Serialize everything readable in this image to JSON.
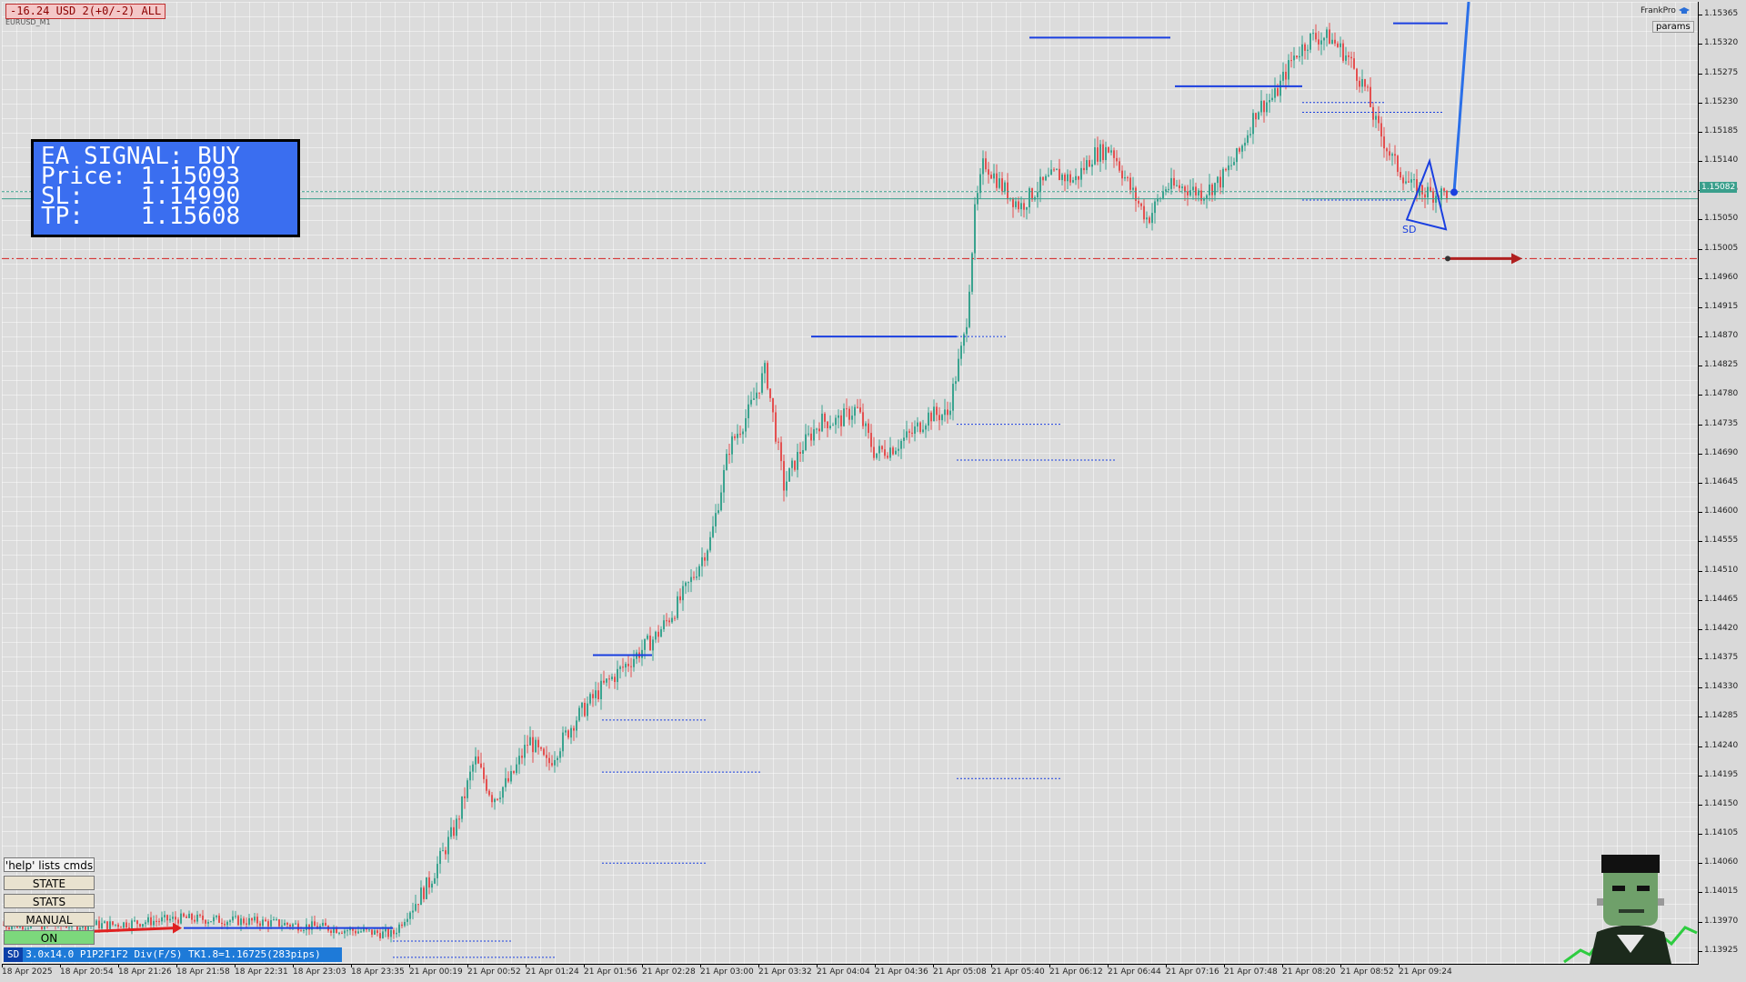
{
  "account": {
    "pnl_badge": "-16.24 USD 2(+0/-2) ALL",
    "symbol": "EURUSD_M1"
  },
  "signal_panel": {
    "title": "EA SIGNAL: BUY",
    "price_line": "Price: 1.15093",
    "sl_line": "SL:    1.14990",
    "tp_line": "TP:    1.15608"
  },
  "branding": {
    "name": "FrankPro",
    "params_label": "params"
  },
  "current_price_label": "1.15082",
  "controls": {
    "help": "'help' lists cmds",
    "state": "STATE",
    "stats": "STATS",
    "manual": "MANUAL",
    "on": "ON"
  },
  "status_bar": {
    "tag": "SD",
    "text": "3.0x14.0 P1P2F1F2 Div(F/S) TK1.8=1.16725(283pips)"
  },
  "pattern_label": "SD",
  "price_axis": [
    "1.15365",
    "1.15320",
    "1.15275",
    "1.15230",
    "1.15185",
    "1.15140",
    "1.15095",
    "1.15050",
    "1.15005",
    "1.14960",
    "1.14915",
    "1.14870",
    "1.14825",
    "1.14780",
    "1.14735",
    "1.14690",
    "1.14645",
    "1.14600",
    "1.14555",
    "1.14510",
    "1.14465",
    "1.14420",
    "1.14375",
    "1.14330",
    "1.14285",
    "1.14240",
    "1.14195",
    "1.14150",
    "1.14105",
    "1.14060",
    "1.14015",
    "1.13970",
    "1.13925"
  ],
  "time_axis": [
    "18 Apr 2025",
    "18 Apr 20:54",
    "18 Apr 21:26",
    "18 Apr 21:58",
    "18 Apr 22:31",
    "18 Apr 23:03",
    "18 Apr 23:35",
    "21 Apr 00:19",
    "21 Apr 00:52",
    "21 Apr 01:24",
    "21 Apr 01:56",
    "21 Apr 02:28",
    "21 Apr 03:00",
    "21 Apr 03:32",
    "21 Apr 04:04",
    "21 Apr 04:36",
    "21 Apr 05:08",
    "21 Apr 05:40",
    "21 Apr 06:12",
    "21 Apr 06:44",
    "21 Apr 07:16",
    "21 Apr 07:48",
    "21 Apr 08:20",
    "21 Apr 08:52",
    "21 Apr 09:24"
  ],
  "colors": {
    "bull": "#3aa38f",
    "bear": "#e45050",
    "level_line": "#1a3fe0",
    "stop_line": "#d42020",
    "panel": "#3a6ef0"
  },
  "chart_data": {
    "type": "candlestick",
    "ylim": [
      1.13905,
      1.15385
    ],
    "price_path": [
      [
        0,
        1.13965
      ],
      [
        120,
        1.13965
      ],
      [
        200,
        1.13975
      ],
      [
        280,
        1.1397
      ],
      [
        360,
        1.1396
      ],
      [
        430,
        1.1395
      ],
      [
        470,
        1.1403
      ],
      [
        500,
        1.1412
      ],
      [
        520,
        1.1422
      ],
      [
        540,
        1.1416
      ],
      [
        560,
        1.1419
      ],
      [
        580,
        1.1425
      ],
      [
        600,
        1.1421
      ],
      [
        630,
        1.1428
      ],
      [
        660,
        1.1433
      ],
      [
        690,
        1.1437
      ],
      [
        720,
        1.1441
      ],
      [
        740,
        1.1445
      ],
      [
        760,
        1.145
      ],
      [
        780,
        1.1456
      ],
      [
        800,
        1.147
      ],
      [
        820,
        1.1475
      ],
      [
        840,
        1.1482
      ],
      [
        860,
        1.1464
      ],
      [
        880,
        1.147
      ],
      [
        900,
        1.1474
      ],
      [
        920,
        1.1474
      ],
      [
        940,
        1.1476
      ],
      [
        960,
        1.1469
      ],
      [
        980,
        1.147
      ],
      [
        1000,
        1.1472
      ],
      [
        1020,
        1.1475
      ],
      [
        1040,
        1.1475
      ],
      [
        1060,
        1.1488
      ],
      [
        1070,
        1.1506
      ],
      [
        1080,
        1.1514
      ],
      [
        1100,
        1.151
      ],
      [
        1120,
        1.1507
      ],
      [
        1140,
        1.151
      ],
      [
        1160,
        1.1512
      ],
      [
        1180,
        1.1511
      ],
      [
        1200,
        1.1515
      ],
      [
        1220,
        1.1516
      ],
      [
        1240,
        1.151
      ],
      [
        1260,
        1.1505
      ],
      [
        1280,
        1.151
      ],
      [
        1300,
        1.151
      ],
      [
        1320,
        1.1509
      ],
      [
        1340,
        1.1511
      ],
      [
        1360,
        1.1515
      ],
      [
        1380,
        1.1522
      ],
      [
        1400,
        1.1524
      ],
      [
        1420,
        1.153
      ],
      [
        1440,
        1.1533
      ],
      [
        1460,
        1.1533
      ],
      [
        1480,
        1.153
      ],
      [
        1500,
        1.1525
      ],
      [
        1510,
        1.152
      ],
      [
        1530,
        1.1514
      ],
      [
        1550,
        1.151
      ],
      [
        1570,
        1.1509
      ],
      [
        1590,
        1.1509
      ]
    ],
    "levels": {
      "entry": 1.15093,
      "stop_loss": 1.1499,
      "take_profit": 1.15608,
      "current": 1.15082
    }
  }
}
